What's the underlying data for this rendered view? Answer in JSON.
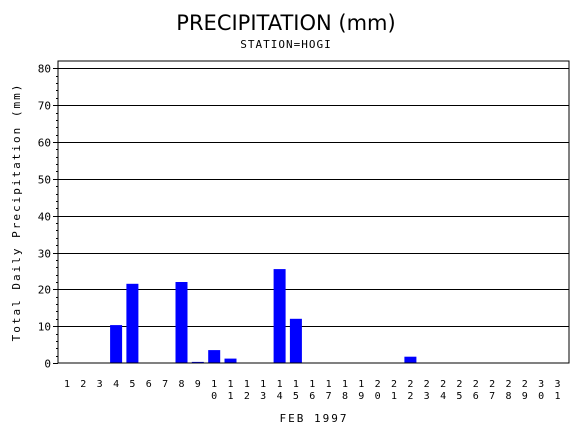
{
  "chart_data": {
    "type": "bar",
    "title": "PRECIPITATION (mm)",
    "subtitle": "STATION=HOGI",
    "xlabel": "FEB 1997",
    "ylabel": "Total Daily Precipitation (mm)",
    "ylim": [
      0,
      82
    ],
    "yticks": [
      0,
      10,
      20,
      30,
      40,
      50,
      60,
      70,
      80
    ],
    "grid": true,
    "colors": {
      "bar": "#0000ff",
      "grid": "#000000"
    },
    "categories": [
      "1",
      "2",
      "3",
      "4",
      "5",
      "6",
      "7",
      "8",
      "9",
      "10",
      "11",
      "12",
      "13",
      "14",
      "15",
      "16",
      "17",
      "18",
      "19",
      "20",
      "21",
      "22",
      "23",
      "24",
      "25",
      "26",
      "27",
      "28",
      "29",
      "30",
      "31"
    ],
    "values": [
      0,
      0,
      0,
      10.3,
      21.5,
      0,
      0,
      22.0,
      0.3,
      3.5,
      1.2,
      0,
      0,
      25.5,
      12.0,
      0,
      0,
      0,
      0,
      0,
      0,
      1.7,
      0,
      0,
      0,
      0,
      0,
      0,
      0,
      0,
      0
    ]
  }
}
